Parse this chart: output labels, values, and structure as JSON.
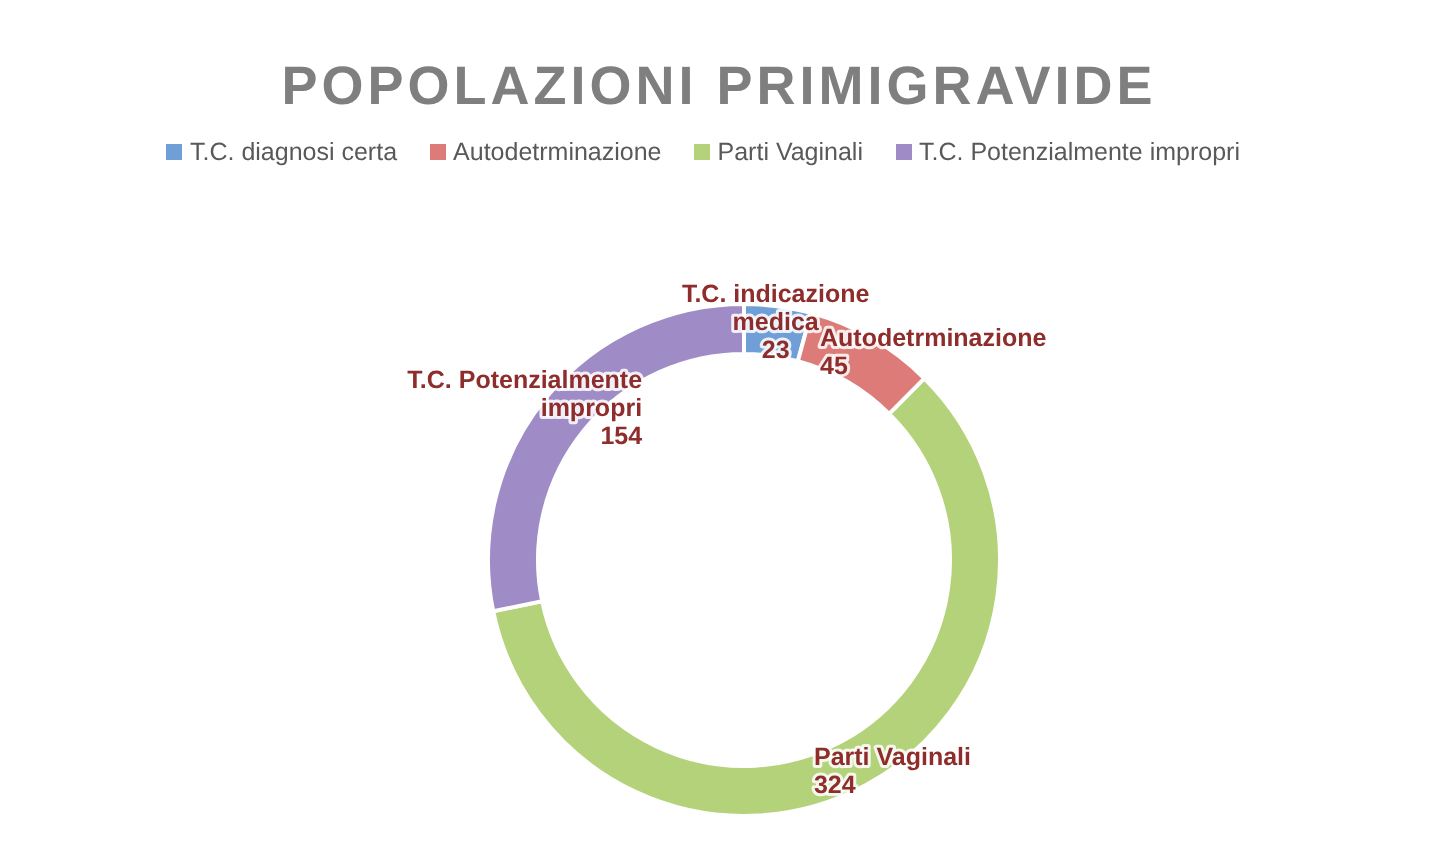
{
  "chart_data": {
    "type": "donut",
    "title": "POPOLAZIONI PRIMIGRAVIDE",
    "categories": [
      "T.C. diagnosi certa",
      "Autodetrminazione",
      "Parti Vaginali",
      "T.C. Potenzialmente impropri"
    ],
    "values": [
      23,
      45,
      324,
      154
    ],
    "colors": [
      "#6f9fd6",
      "#dc7b78",
      "#b3d27a",
      "#9f8bc6"
    ],
    "data_labels": true,
    "annotations": [
      {
        "text": "T.C. indicazione medica",
        "x": "T.C. diagnosi certa"
      }
    ],
    "legend": "top"
  }
}
